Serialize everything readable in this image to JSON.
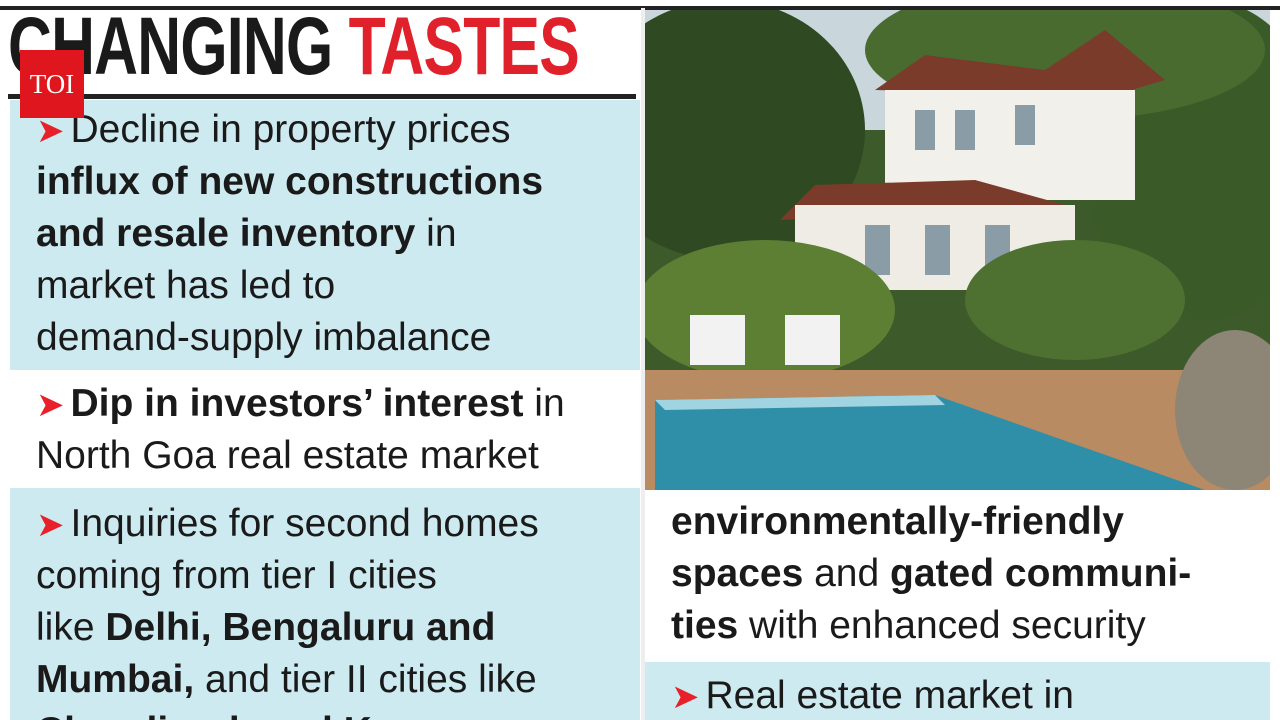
{
  "title": {
    "part1": "CHANGING",
    "part2": "TASTES"
  },
  "logo": "TOI",
  "left_items": [
    {
      "lines": [
        [
          {
            "text": "Decline in property prices",
            "bold": false
          }
        ],
        [
          {
            "text": "influx of new constructions",
            "bold": true
          }
        ],
        [
          {
            "text": "and resale inventory",
            "bold": true
          },
          {
            "text": " in",
            "bold": false
          }
        ],
        [
          {
            "text": "market has led to",
            "bold": false
          }
        ],
        [
          {
            "text": "demand-supply imbalance",
            "bold": false
          }
        ]
      ]
    },
    {
      "lines": [
        [
          {
            "text": "Dip in investors’ interest",
            "bold": true
          },
          {
            "text": " in",
            "bold": false
          }
        ],
        [
          {
            "text": "North Goa real estate market",
            "bold": false
          }
        ]
      ]
    },
    {
      "lines": [
        [
          {
            "text": "Inquiries for second homes",
            "bold": false
          }
        ],
        [
          {
            "text": "coming from tier I cities",
            "bold": false
          }
        ],
        [
          {
            "text": "like ",
            "bold": false
          },
          {
            "text": "Delhi, Bengaluru and",
            "bold": true
          }
        ],
        [
          {
            "text": "Mumbai,",
            "bold": true
          },
          {
            "text": " and tier II cities like",
            "bold": false
          }
        ],
        [
          {
            "text": "Chandigarh and Kanpur",
            "bold": true
          }
        ]
      ]
    }
  ],
  "right_items": [
    {
      "lines": [
        [
          {
            "text": "environmentally-friendly",
            "bold": true
          }
        ],
        [
          {
            "text": "spaces",
            "bold": true
          },
          {
            "text": " and ",
            "bold": false
          },
          {
            "text": "gated communi-",
            "bold": true
          }
        ],
        [
          {
            "text": "ties",
            "bold": true
          },
          {
            "text": " with enhanced security",
            "bold": false
          }
        ]
      ]
    },
    {
      "lines": [
        [
          {
            "text": "Real estate market in",
            "bold": false
          }
        ]
      ]
    }
  ]
}
